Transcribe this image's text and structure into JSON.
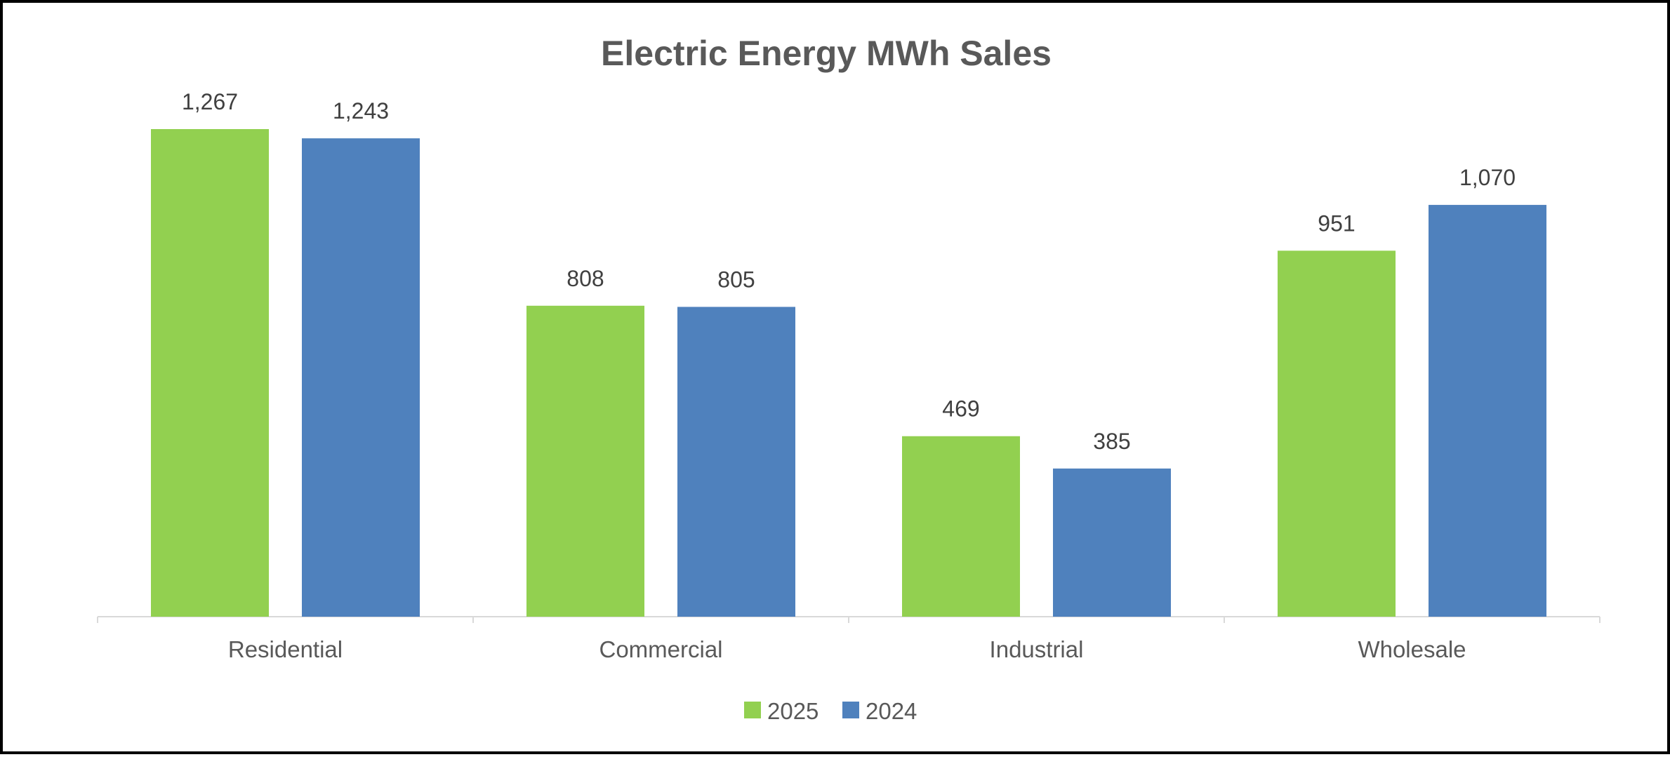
{
  "chart_data": {
    "type": "bar",
    "title": "Electric Energy MWh Sales",
    "xlabel": "",
    "ylabel": "",
    "ylim": [
      0,
      1267
    ],
    "grid": false,
    "legend_position": "bottom",
    "categories": [
      "Residential",
      "Commercial",
      "Industrial",
      "Wholesale"
    ],
    "series": [
      {
        "name": "2025",
        "color": "#92d050",
        "values": [
          1267,
          808,
          469,
          951
        ],
        "labels": [
          "1,267",
          "808",
          "469",
          "951"
        ]
      },
      {
        "name": "2024",
        "color": "#4f81bd",
        "values": [
          1243,
          805,
          385,
          1070
        ],
        "labels": [
          "1,243",
          "805",
          "385",
          "1,070"
        ]
      }
    ]
  }
}
